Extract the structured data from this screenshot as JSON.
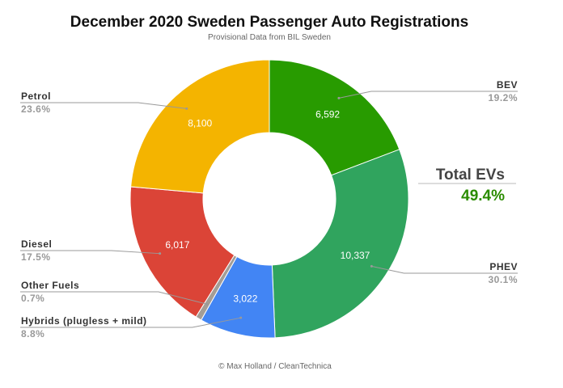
{
  "chart_data": {
    "type": "pie",
    "donut": true,
    "title": "December 2020 Sweden Passenger Auto Registrations",
    "subtitle": "Provisional Data from BIL Sweden",
    "credit": "© Max Holland / CleanTechnica",
    "slices": [
      {
        "name": "BEV",
        "value": 6592,
        "value_label": "6,592",
        "percent": "19.2%",
        "color": "#289b00"
      },
      {
        "name": "PHEV",
        "value": 10337,
        "value_label": "10,337",
        "percent": "30.1%",
        "color": "#30a45e"
      },
      {
        "name": "Hybrids (plugless + mild)",
        "value": 3022,
        "value_label": "3,022",
        "percent": "8.8%",
        "color": "#4285f4"
      },
      {
        "name": "Other Fuels",
        "value": 240,
        "value_label": "",
        "percent": "0.7%",
        "color": "#a39d96"
      },
      {
        "name": "Diesel",
        "value": 6017,
        "value_label": "6,017",
        "percent": "17.5%",
        "color": "#db4437"
      },
      {
        "name": "Petrol",
        "value": 8100,
        "value_label": "8,100",
        "percent": "23.6%",
        "color": "#f4b400"
      }
    ],
    "annotation": {
      "label": "Total EVs",
      "value": "49.4%",
      "color": "#2a8c00"
    }
  }
}
